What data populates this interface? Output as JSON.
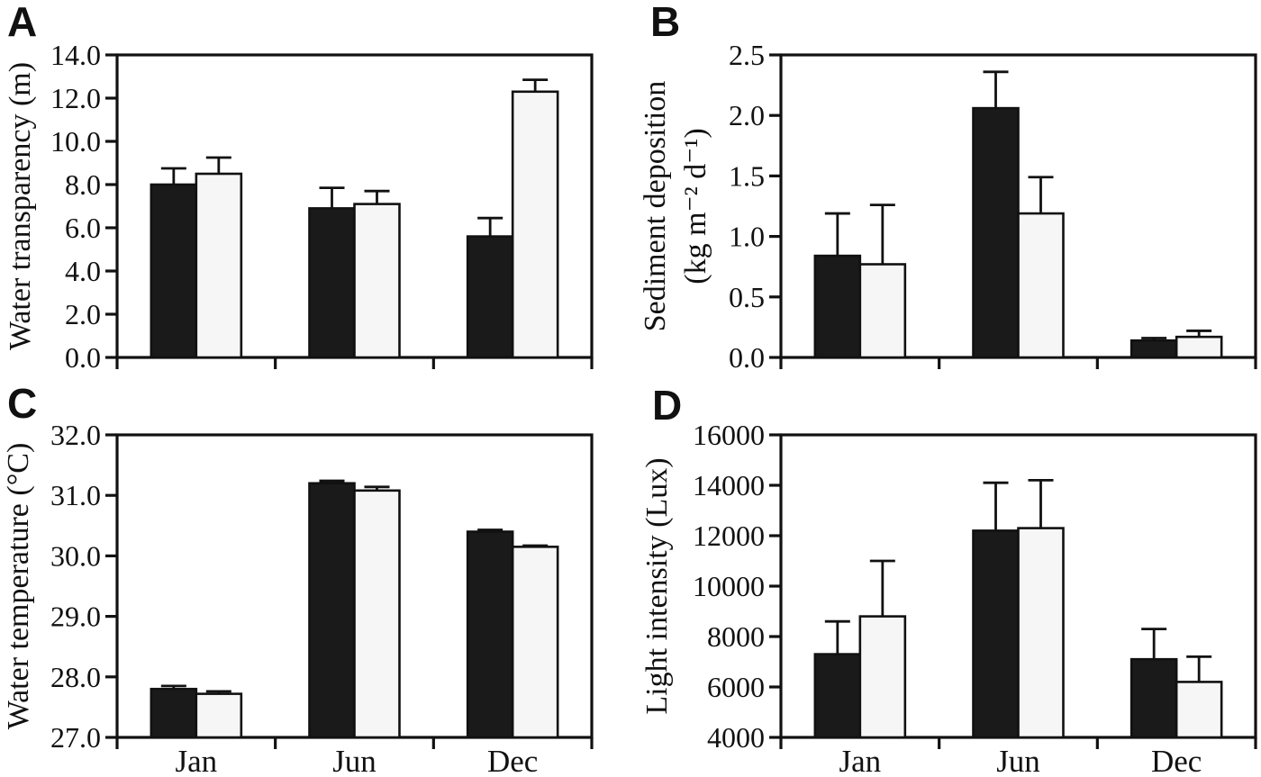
{
  "figure": {
    "background": "#ffffff",
    "ink": "#111111",
    "bar_filled_color": "#1a1a1a",
    "bar_open_color": "#f6f6f6"
  },
  "chart_data": [
    {
      "type": "bar",
      "panel_label": "A",
      "ylabel_lines": [
        "Water transparency (m)"
      ],
      "xlabel": "",
      "categories": [
        "Jan",
        "Jun",
        "Dec"
      ],
      "show_category_labels": false,
      "ylim": [
        0,
        14
      ],
      "ytick_values": [
        0,
        2,
        4,
        6,
        8,
        10,
        12,
        14
      ],
      "ytick_labels": [
        "0.0",
        "2.0",
        "4.0",
        "6.0",
        "8.0",
        "10.0",
        "12.0",
        "14.0"
      ],
      "grid": false,
      "legend": null,
      "series": [
        {
          "name": "filled-black",
          "values": [
            8.0,
            6.9,
            5.6
          ],
          "errors_up": [
            0.75,
            0.95,
            0.85
          ]
        },
        {
          "name": "open-white",
          "values": [
            8.5,
            7.1,
            12.3
          ],
          "errors_up": [
            0.75,
            0.6,
            0.55
          ]
        }
      ]
    },
    {
      "type": "bar",
      "panel_label": "B",
      "ylabel_lines": [
        "Sediment deposition",
        "(kg m⁻² d⁻¹)"
      ],
      "xlabel": "",
      "categories": [
        "Jan",
        "Jun",
        "Dec"
      ],
      "show_category_labels": false,
      "ylim": [
        0,
        2.5
      ],
      "ytick_values": [
        0,
        0.5,
        1.0,
        1.5,
        2.0,
        2.5
      ],
      "ytick_labels": [
        "0.0",
        "0.5",
        "1.0",
        "1.5",
        "2.0",
        "2.5"
      ],
      "grid": false,
      "legend": null,
      "series": [
        {
          "name": "filled-black",
          "values": [
            0.84,
            2.06,
            0.14
          ],
          "errors_up": [
            0.35,
            0.3,
            0.02
          ]
        },
        {
          "name": "open-white",
          "values": [
            0.77,
            1.19,
            0.17
          ],
          "errors_up": [
            0.49,
            0.3,
            0.05
          ]
        }
      ]
    },
    {
      "type": "bar",
      "panel_label": "C",
      "ylabel_lines": [
        "Water temperature (°C)"
      ],
      "xlabel": "",
      "categories": [
        "Jan",
        "Jun",
        "Dec"
      ],
      "show_category_labels": true,
      "ylim": [
        27,
        32
      ],
      "ytick_values": [
        27,
        28,
        29,
        30,
        31,
        32
      ],
      "ytick_labels": [
        "27.0",
        "28.0",
        "29.0",
        "30.0",
        "31.0",
        "32.0"
      ],
      "grid": false,
      "legend": null,
      "series": [
        {
          "name": "filled-black",
          "values": [
            27.8,
            31.2,
            30.4
          ],
          "errors_up": [
            0.05,
            0.04,
            0.03
          ]
        },
        {
          "name": "open-white",
          "values": [
            27.72,
            31.08,
            30.15
          ],
          "errors_up": [
            0.04,
            0.06,
            0.02
          ]
        }
      ]
    },
    {
      "type": "bar",
      "panel_label": "D",
      "ylabel_lines": [
        "Light intensity (Lux)"
      ],
      "xlabel": "",
      "categories": [
        "Jan",
        "Jun",
        "Dec"
      ],
      "show_category_labels": true,
      "ylim": [
        4000,
        16000
      ],
      "ytick_values": [
        4000,
        6000,
        8000,
        10000,
        12000,
        14000,
        16000
      ],
      "ytick_labels": [
        "4000",
        "6000",
        "8000",
        "10000",
        "12000",
        "14000",
        "16000"
      ],
      "grid": false,
      "legend": null,
      "series": [
        {
          "name": "filled-black",
          "values": [
            7300,
            12200,
            7100
          ],
          "errors_up": [
            1300,
            1900,
            1200
          ]
        },
        {
          "name": "open-white",
          "values": [
            8800,
            12300,
            6200
          ],
          "errors_up": [
            2200,
            1900,
            1000
          ]
        }
      ]
    }
  ]
}
